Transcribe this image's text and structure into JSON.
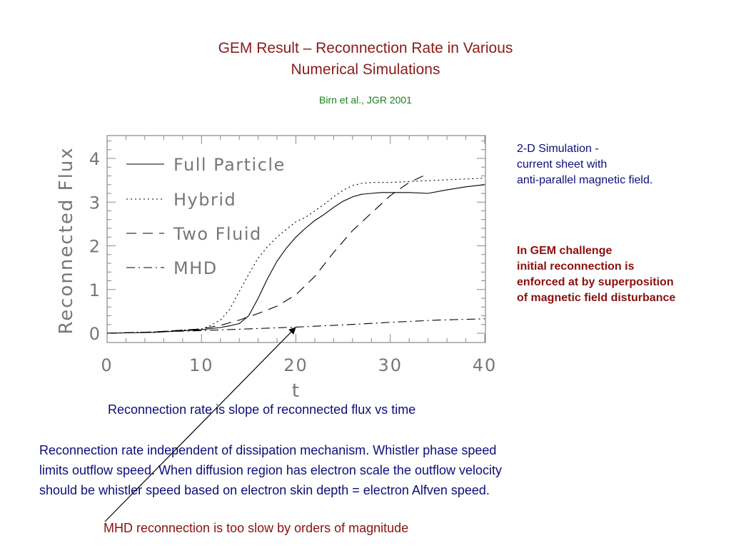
{
  "slide": {
    "title_line1": "GEM Result – Reconnection Rate in Various",
    "title_line2": "Numerical Simulations",
    "citation": "Birn et al., JGR 2001",
    "sim_note": [
      "2-D Simulation  -",
      "current sheet with",
      "anti-parallel magnetic field."
    ],
    "gem_note": [
      "In GEM challenge",
      "initial reconnection is",
      "enforced at by superposition",
      "of magnetic field disturbance"
    ],
    "slope_caption": "Reconnection rate is slope of reconnected flux vs time",
    "paragraph": [
      "Reconnection rate independent of dissipation mechanism. Whistler phase speed",
      "limits outflow speed. When diffusion region  has electron scale the outflow velocity",
      "should be whistler speed based on electron skin depth = electron Alfven speed."
    ],
    "mhd_caption": "MHD reconnection is too slow by orders of magnitude",
    "colors": {
      "title": "#8b1a1a",
      "citation": "#1a7f1a",
      "body": "#0d0d7a",
      "emphasis": "#8b1010"
    }
  },
  "chart_data": {
    "type": "line",
    "xlabel": "t",
    "ylabel": "Reconnected Flux",
    "xlim": [
      0,
      40
    ],
    "ylim": [
      0,
      4.5
    ],
    "x_ticks": [
      0,
      10,
      20,
      30,
      40
    ],
    "y_ticks": [
      0,
      1,
      2,
      3,
      4
    ],
    "legend_position": "top-left",
    "series": [
      {
        "name": "Full Particle",
        "style": "solid",
        "x": [
          0,
          5,
          10,
          12,
          13,
          14,
          15,
          16,
          17,
          18,
          19,
          20,
          21,
          22,
          23,
          24,
          25,
          26,
          27,
          28,
          29,
          30,
          32,
          34,
          36,
          38,
          40
        ],
        "y": [
          0.0,
          0.02,
          0.08,
          0.13,
          0.17,
          0.22,
          0.4,
          0.8,
          1.25,
          1.65,
          1.95,
          2.2,
          2.4,
          2.58,
          2.72,
          2.88,
          3.02,
          3.12,
          3.18,
          3.2,
          3.22,
          3.22,
          3.22,
          3.2,
          3.28,
          3.35,
          3.4
        ]
      },
      {
        "name": "Hybrid",
        "style": "dotted",
        "x": [
          0,
          5,
          10,
          11,
          12,
          13,
          14,
          15,
          16,
          17,
          18,
          19,
          20,
          21,
          22,
          23,
          24,
          25,
          26,
          27,
          28,
          30,
          32,
          35,
          40
        ],
        "y": [
          0.0,
          0.03,
          0.1,
          0.18,
          0.3,
          0.55,
          0.95,
          1.35,
          1.72,
          1.98,
          2.2,
          2.38,
          2.55,
          2.65,
          2.8,
          2.95,
          3.12,
          3.27,
          3.38,
          3.43,
          3.45,
          3.45,
          3.47,
          3.5,
          3.55
        ]
      },
      {
        "name": "Two Fluid",
        "style": "dashed",
        "x": [
          0,
          5,
          10,
          12,
          14,
          16,
          18,
          20,
          22,
          24,
          26,
          28,
          30,
          32,
          33.5
        ],
        "y": [
          0.0,
          0.03,
          0.1,
          0.18,
          0.3,
          0.45,
          0.62,
          0.88,
          1.3,
          1.85,
          2.35,
          2.75,
          3.15,
          3.45,
          3.6
        ]
      },
      {
        "name": "MHD",
        "style": "dashdot",
        "x": [
          0,
          5,
          10,
          15,
          20,
          25,
          30,
          35,
          40
        ],
        "y": [
          0.0,
          0.03,
          0.06,
          0.1,
          0.14,
          0.19,
          0.25,
          0.3,
          0.33
        ]
      }
    ]
  }
}
